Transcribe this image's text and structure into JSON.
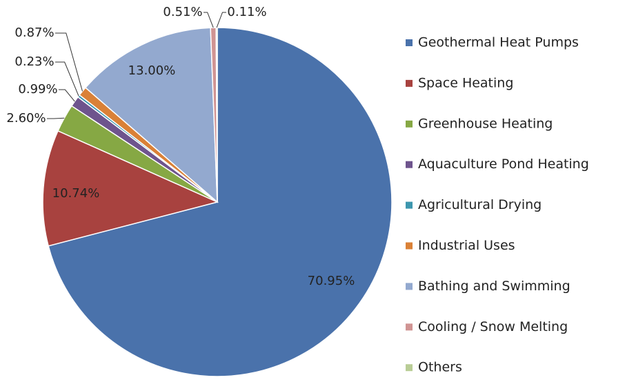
{
  "chart_data": {
    "type": "pie",
    "categories": [
      "Geothermal Heat Pumps",
      "Space Heating",
      "Greenhouse Heating",
      "Aquaculture Pond Heating",
      "Agricultural Drying",
      "Industrial Uses",
      "Bathing and Swimming",
      "Cooling / Snow Melting",
      "Others"
    ],
    "values": [
      70.95,
      10.74,
      2.6,
      0.99,
      0.23,
      0.87,
      13.0,
      0.51,
      0.11
    ],
    "value_labels": [
      "70.95%",
      "10.74%",
      "2.60%",
      "0.99%",
      "0.23%",
      "0.87%",
      "13.00%",
      "0.51%",
      "0.11%"
    ],
    "colors": [
      "#4a72ab",
      "#a8423f",
      "#86a844",
      "#6e548d",
      "#3d96ae",
      "#da8137",
      "#93a9cf",
      "#d09493",
      "#b9cd96"
    ],
    "legend": "right"
  }
}
